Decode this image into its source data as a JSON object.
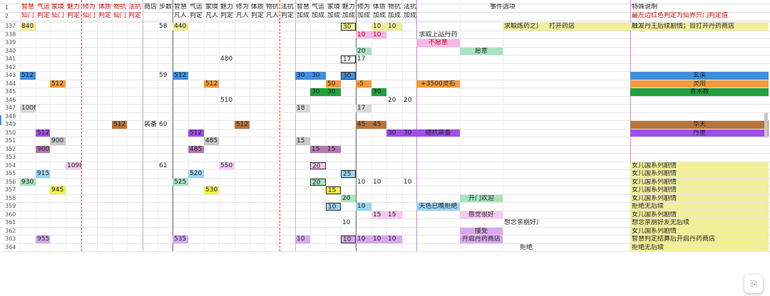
{
  "header1": [
    {
      "c": 0,
      "t": "智慧",
      "red": true
    },
    {
      "c": 1,
      "t": "气运",
      "red": true
    },
    {
      "c": 2,
      "t": "家境",
      "red": true
    },
    {
      "c": 3,
      "t": "魅力",
      "red": true
    },
    {
      "c": 4,
      "t": "修为",
      "red": true
    },
    {
      "c": 5,
      "t": "体质",
      "red": true
    },
    {
      "c": 6,
      "t": "物抗",
      "red": true
    },
    {
      "c": 7,
      "t": "法抗",
      "red": true
    },
    {
      "c": 8,
      "t": "商店"
    },
    {
      "c": 9,
      "t": "步数"
    },
    {
      "c": 10,
      "t": "智慧"
    },
    {
      "c": 11,
      "t": "气运"
    },
    {
      "c": 12,
      "t": "家境"
    },
    {
      "c": 13,
      "t": "魅力"
    },
    {
      "c": 14,
      "t": "修为"
    },
    {
      "c": 15,
      "t": "体质"
    },
    {
      "c": 16,
      "t": "物抗"
    },
    {
      "c": 17,
      "t": "法抗"
    },
    {
      "c": 18,
      "t": "智慧"
    },
    {
      "c": 19,
      "t": "气运"
    },
    {
      "c": 20,
      "t": "家境"
    },
    {
      "c": 21,
      "t": "魅力"
    },
    {
      "c": 22,
      "t": "修为"
    },
    {
      "c": 23,
      "t": "体质"
    },
    {
      "c": 24,
      "t": "物抗"
    },
    {
      "c": 25,
      "t": "法抗"
    },
    {
      "c": 27,
      "t": "事件选项"
    },
    {
      "c": 29,
      "t": "特殊说明"
    }
  ],
  "header2": [
    {
      "c": 0,
      "t": "仙门",
      "red": true
    },
    {
      "c": 1,
      "t": "判定",
      "red": true
    },
    {
      "c": 2,
      "t": "仙门",
      "red": true
    },
    {
      "c": 3,
      "t": "判定",
      "red": true
    },
    {
      "c": 4,
      "t": "仙门",
      "red": true
    },
    {
      "c": 5,
      "t": "判定",
      "red": true
    },
    {
      "c": 6,
      "t": "仙门",
      "red": true
    },
    {
      "c": 7,
      "t": "判定",
      "red": true
    },
    {
      "c": 10,
      "t": "凡人"
    },
    {
      "c": 11,
      "t": "判定"
    },
    {
      "c": 12,
      "t": "凡人"
    },
    {
      "c": 13,
      "t": "判定"
    },
    {
      "c": 14,
      "t": "凡人"
    },
    {
      "c": 15,
      "t": "判定"
    },
    {
      "c": 16,
      "t": "凡人"
    },
    {
      "c": 17,
      "t": "判定"
    },
    {
      "c": 18,
      "t": "加成"
    },
    {
      "c": 19,
      "t": "加成"
    },
    {
      "c": 20,
      "t": "加成"
    },
    {
      "c": 21,
      "t": "加成"
    },
    {
      "c": 22,
      "t": "加成"
    },
    {
      "c": 23,
      "t": "加成"
    },
    {
      "c": 24,
      "t": "加成"
    },
    {
      "c": 25,
      "t": "加成"
    },
    {
      "c": 29,
      "t": "最左边红色判定为仙界只门判定值",
      "red": true
    }
  ],
  "rows": [
    {
      "n": "337",
      "cells": [
        {
          "c": 0,
          "t": "840",
          "bg": "#f2ee9a"
        },
        {
          "c": 9,
          "t": "58"
        },
        {
          "c": 10,
          "t": "440",
          "bg": "#f2ee9a"
        },
        {
          "c": 21,
          "t": "30",
          "bg": "#f2ee9a",
          "box": true
        },
        {
          "c": 23,
          "t": "10",
          "bg": "#f2ee9a"
        },
        {
          "c": 24,
          "t": "10",
          "bg": "#f2ee9a"
        },
        {
          "c": 28,
          "t": "求取炼药之道",
          "bg": "#f2ee9a",
          "xa": true
        },
        {
          "c": 28,
          "t": "打开药店",
          "bg": "#f2ee9a",
          "xb": true
        },
        {
          "c": 29,
          "t": "触发丹王后续剧情；目打开丹药商店",
          "bg": "#f2ee9a"
        }
      ],
      "rowbg": "#f2ee9a",
      "rowfrom": 28
    },
    {
      "n": "338",
      "cells": [
        {
          "c": 22,
          "t": "10",
          "bg": "#f7b6e8",
          "fg": "#d40000"
        },
        {
          "c": 23,
          "t": "10",
          "bg": "#f7b6e8",
          "fg": "#d40000"
        },
        {
          "c": 26,
          "t": "求取上品丹药",
          "center": true
        }
      ]
    },
    {
      "n": "339",
      "cells": [
        {
          "c": 26,
          "t": "不愿意",
          "bg": "#f7b6e8",
          "fg": "#d40000",
          "center": true
        }
      ]
    },
    {
      "n": "340",
      "cells": [
        {
          "c": 22,
          "t": "20",
          "bg": "#a8e4c0"
        },
        {
          "c": 27,
          "t": "愿意",
          "bg": "#a8e4c0",
          "center": true
        }
      ]
    },
    {
      "n": "341",
      "cells": [
        {
          "c": 13,
          "t": "480"
        },
        {
          "c": 21,
          "t": "17",
          "box": true
        },
        {
          "c": 22,
          "t": "17"
        }
      ]
    },
    {
      "n": "342",
      "cells": []
    },
    {
      "n": "343",
      "cells": [
        {
          "c": 0,
          "t": "512",
          "bg": "#3d8fe0"
        },
        {
          "c": 9,
          "t": "59"
        },
        {
          "c": 10,
          "t": "512",
          "bg": "#3d8fe0"
        },
        {
          "c": 18,
          "t": "30",
          "bg": "#3d8fe0"
        },
        {
          "c": 19,
          "t": "30",
          "bg": "#3d8fe0"
        },
        {
          "c": 21,
          "t": "30",
          "bg": "#3d8fe0",
          "box": true
        },
        {
          "c": 29,
          "t": "玄溪",
          "bg": "#3d8fe0",
          "center": true
        }
      ]
    },
    {
      "n": "344",
      "cells": [
        {
          "c": 2,
          "t": "512",
          "bg": "#f59a3a"
        },
        {
          "c": 12,
          "t": "512",
          "bg": "#f59a3a"
        },
        {
          "c": 20,
          "t": "50",
          "bg": "#f59a3a"
        },
        {
          "c": 22,
          "t": "-5",
          "bg": "#f59a3a"
        },
        {
          "c": 26,
          "t": "+3500灵石",
          "bg": "#f59a3a",
          "center": true
        },
        {
          "c": 29,
          "t": "灵阳",
          "bg": "#f59a3a",
          "center": true
        }
      ]
    },
    {
      "n": "345",
      "cells": [
        {
          "c": 19,
          "t": "30",
          "bg": "#22a03c"
        },
        {
          "c": 20,
          "t": "30",
          "bg": "#22a03c"
        },
        {
          "c": 23,
          "t": "30",
          "bg": "#22a03c"
        },
        {
          "c": 29,
          "t": "青木教",
          "bg": "#22a03c",
          "center": true
        }
      ]
    },
    {
      "n": "346",
      "cells": [
        {
          "c": 13,
          "t": "510"
        },
        {
          "c": 24,
          "t": "20"
        },
        {
          "c": 25,
          "t": "20"
        }
      ]
    },
    {
      "n": "347",
      "cells": [
        {
          "c": 0,
          "t": "1008",
          "bg": "#d8d8d8"
        },
        {
          "c": 18,
          "t": "18",
          "bg": "#d8d8d8"
        },
        {
          "c": 22,
          "t": "17",
          "bg": "#d8d8d8"
        }
      ]
    },
    {
      "n": "348",
      "cells": []
    },
    {
      "n": "349",
      "cells": [
        {
          "c": 6,
          "t": "512",
          "bg": "#b8743c"
        },
        {
          "c": 8,
          "t": "装备"
        },
        {
          "c": 9,
          "t": "60"
        },
        {
          "c": 14,
          "t": "512",
          "bg": "#b8743c"
        },
        {
          "c": 22,
          "t": "45",
          "bg": "#b8743c"
        },
        {
          "c": 23,
          "t": "45",
          "bg": "#b8743c"
        },
        {
          "c": 29,
          "t": "华天",
          "bg": "#b8743c",
          "center": true
        }
      ]
    },
    {
      "n": "350",
      "cells": [
        {
          "c": 1,
          "t": "512",
          "bg": "#a04ee8"
        },
        {
          "c": 11,
          "t": "512",
          "bg": "#a04ee8"
        },
        {
          "c": 24,
          "t": "30",
          "bg": "#a04ee8"
        },
        {
          "c": 25,
          "t": "30",
          "bg": "#a04ee8"
        },
        {
          "c": 26,
          "t": "随机装备",
          "bg": "#a04ee8",
          "center": true
        },
        {
          "c": 29,
          "t": "丹墨",
          "bg": "#a04ee8",
          "center": true
        }
      ]
    },
    {
      "n": "351",
      "cells": [
        {
          "c": 2,
          "t": "900",
          "bg": "#c8c8c8"
        },
        {
          "c": 12,
          "t": "485",
          "bg": "#c8c8c8"
        },
        {
          "c": 18,
          "t": "15",
          "bg": "#c8c8c8"
        }
      ]
    },
    {
      "n": "352",
      "cells": [
        {
          "c": 1,
          "t": "900",
          "bg": "#b07ab0"
        },
        {
          "c": 11,
          "t": "485",
          "bg": "#b07ab0"
        },
        {
          "c": 19,
          "t": "15",
          "bg": "#b07ab0"
        },
        {
          "c": 20,
          "t": "15",
          "bg": "#b07ab0"
        }
      ]
    },
    {
      "n": "353",
      "cells": []
    },
    {
      "n": "354",
      "cells": [
        {
          "c": 3,
          "t": "1098",
          "bg": "#f9c8f0"
        },
        {
          "c": 9,
          "t": "61"
        },
        {
          "c": 13,
          "t": "550",
          "bg": "#f9c8f0"
        },
        {
          "c": 19,
          "t": "20",
          "bg": "#f9c8f0",
          "box": true
        },
        {
          "c": 29,
          "t": "女儿国系列剧情",
          "bg": "#f2ee9a"
        }
      ]
    },
    {
      "n": "355",
      "cells": [
        {
          "c": 1,
          "t": "915",
          "bg": "#9cd4f2"
        },
        {
          "c": 11,
          "t": "520",
          "bg": "#9cd4f2"
        },
        {
          "c": 21,
          "t": "25",
          "bg": "#9cd4f2",
          "box": true
        },
        {
          "c": 29,
          "t": "女儿国系列剧情",
          "bg": "#f2ee9a"
        }
      ]
    },
    {
      "n": "356",
      "cells": [
        {
          "c": 0,
          "t": "930",
          "bg": "#a8e4c0"
        },
        {
          "c": 10,
          "t": "525",
          "bg": "#a8e4c0"
        },
        {
          "c": 19,
          "t": "20",
          "bg": "#a8e4c0",
          "box": true
        },
        {
          "c": 22,
          "t": "10"
        },
        {
          "c": 23,
          "t": "10"
        },
        {
          "c": 25,
          "t": "10"
        },
        {
          "c": 29,
          "t": "女儿国系列剧情",
          "bg": "#f2ee9a"
        }
      ]
    },
    {
      "n": "357",
      "cells": [
        {
          "c": 2,
          "t": "945",
          "bg": "#f5f04a"
        },
        {
          "c": 12,
          "t": "530",
          "bg": "#f5f04a"
        },
        {
          "c": 20,
          "t": "15",
          "bg": "#f5f04a",
          "box": true
        },
        {
          "c": 29,
          "t": "女儿国系列剧情",
          "bg": "#f2ee9a"
        }
      ]
    },
    {
      "n": "358",
      "cells": [
        {
          "c": 21,
          "t": "20",
          "bg": "#a8e4c0"
        },
        {
          "c": 27,
          "t": "开门欢迎",
          "bg": "#a8e4c0",
          "center": true
        },
        {
          "c": 29,
          "t": "女儿国系列剧情",
          "bg": "#f2ee9a"
        }
      ]
    },
    {
      "n": "359",
      "cells": [
        {
          "c": 20,
          "t": "10",
          "bg": "#9cd4f2",
          "box": true
        },
        {
          "c": 22,
          "t": "10",
          "bg": "#9cd4f2"
        },
        {
          "c": 26,
          "t": "天色已晚拒绝",
          "bg": "#9cd4f2",
          "center": true
        },
        {
          "c": 29,
          "t": "拒绝无后续",
          "bg": "#f2ee9a"
        }
      ]
    },
    {
      "n": "360",
      "cells": [
        {
          "c": 23,
          "t": "15",
          "bg": "#f9c8f0"
        },
        {
          "c": 24,
          "t": "15",
          "bg": "#f9c8f0"
        },
        {
          "c": 27,
          "t": "感觉很好",
          "bg": "#f9c8f0",
          "center": true
        },
        {
          "c": 29,
          "t": "女儿国系列剧情",
          "bg": "#f2ee9a"
        }
      ]
    },
    {
      "n": "361",
      "cells": [
        {
          "c": 21,
          "t": "10"
        },
        {
          "c": 28,
          "t": "想念亲朋好友",
          "xa": true
        },
        {
          "c": 29,
          "t": "想念亲朋好友无后续",
          "bg": "#f2ee9a"
        }
      ]
    },
    {
      "n": "362",
      "cells": [
        {
          "c": 27,
          "t": "接受",
          "bg": "#d9a8f0",
          "center": true
        },
        {
          "c": 29,
          "t": "女儿国系列剧情",
          "bg": "#f2ee9a"
        }
      ]
    },
    {
      "n": "363",
      "cells": [
        {
          "c": 1,
          "t": "955",
          "bg": "#d9a8f0"
        },
        {
          "c": 10,
          "t": "535",
          "bg": "#d9a8f0"
        },
        {
          "c": 18,
          "t": "10",
          "bg": "#d9a8f0"
        },
        {
          "c": 21,
          "t": "10",
          "bg": "#d9a8f0",
          "box": true
        },
        {
          "c": 22,
          "t": "10",
          "bg": "#d9a8f0"
        },
        {
          "c": 23,
          "t": "10",
          "bg": "#d9a8f0"
        },
        {
          "c": 24,
          "t": "10",
          "bg": "#d9a8f0"
        },
        {
          "c": 27,
          "t": "开启丹药商店",
          "bg": "#d9a8f0",
          "center": true
        },
        {
          "c": 29,
          "t": "智慧判定结算后开启丹药商店",
          "bg": "#f2ee9a"
        }
      ]
    },
    {
      "n": "364",
      "cells": [
        {
          "c": 28,
          "t": "拒绝",
          "xc": true
        },
        {
          "c": 29,
          "t": "拒绝无后续",
          "bg": "#f2ee9a"
        }
      ]
    }
  ],
  "header_rownums": [
    "1",
    "2"
  ],
  "colors": {
    "yellow": "#f2ee9a",
    "grid": "#e2e2e2",
    "red": "#d40000"
  },
  "icons": {
    "fab": "clipboard-icon"
  }
}
